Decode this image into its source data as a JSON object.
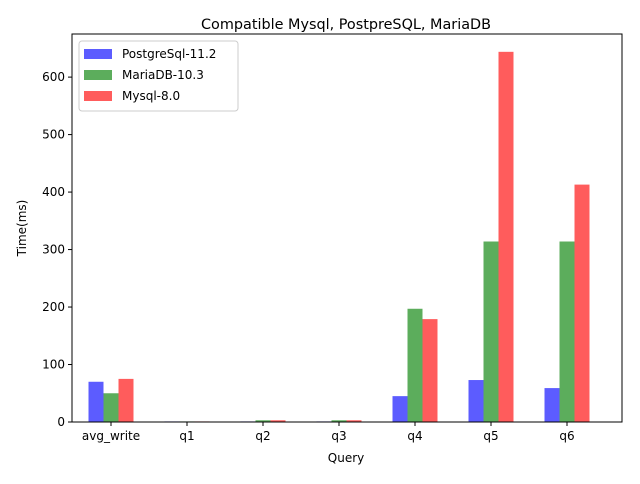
{
  "chart_data": {
    "type": "bar",
    "title": "Compatible Mysql, PostpreSQL, MariaDB",
    "xlabel": "Query",
    "ylabel": "Time(ms)",
    "categories": [
      "avg_write",
      "q1",
      "q2",
      "q3",
      "q4",
      "q5",
      "q6"
    ],
    "ylim": [
      0,
      675
    ],
    "yticks": [
      0,
      100,
      200,
      300,
      400,
      500,
      600
    ],
    "grid": false,
    "legend_position": "top-left",
    "series": [
      {
        "name": "PostgreSql-11.2",
        "color": "#3333ff",
        "values": [
          70,
          1,
          1,
          1,
          45,
          73,
          59
        ]
      },
      {
        "name": "MariaDB-10.3",
        "color": "#339933",
        "values": [
          50,
          1,
          3,
          3,
          197,
          314,
          314
        ]
      },
      {
        "name": "Mysql-8.0",
        "color": "#ff3333",
        "values": [
          75,
          1,
          3,
          3,
          179,
          644,
          413
        ]
      }
    ]
  }
}
